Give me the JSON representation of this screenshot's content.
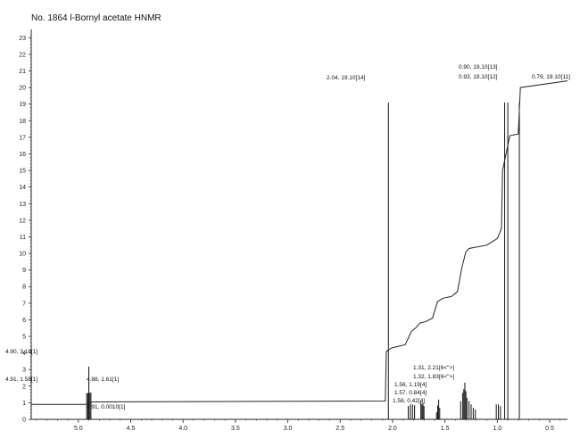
{
  "chart_data": {
    "type": "line",
    "title": "No. 1864 l-Bornyl acetate HNMR",
    "xlabel": "",
    "ylabel": "",
    "x_reversed": true,
    "xlim": [
      5.45,
      0.33
    ],
    "ylim": [
      0,
      23.5
    ],
    "x_ticks": [
      "5.0",
      "4.5",
      "4.0",
      "3.5",
      "3.0",
      "2.5",
      "2.0",
      "1.5",
      "1.0",
      "0.5"
    ],
    "y_ticks": [
      "0",
      "1",
      "2",
      "3",
      "4",
      "5",
      "6",
      "7",
      "8",
      "9",
      "10",
      "11",
      "12",
      "13",
      "14",
      "15",
      "16",
      "17",
      "18",
      "19",
      "20",
      "21",
      "22",
      "23"
    ],
    "grid": false,
    "peaks": [
      {
        "x": 4.92,
        "y": 1.58
      },
      {
        "x": 4.91,
        "y": 1.58
      },
      {
        "x": 4.9,
        "y": 3.18
      },
      {
        "x": 4.89,
        "y": 1.61
      },
      {
        "x": 4.88,
        "y": 1.61
      },
      {
        "x": 2.04,
        "y": 19.1
      },
      {
        "x": 1.85,
        "y": 0.8
      },
      {
        "x": 1.83,
        "y": 0.9
      },
      {
        "x": 1.81,
        "y": 0.9
      },
      {
        "x": 1.79,
        "y": 0.85
      },
      {
        "x": 1.73,
        "y": 1.1
      },
      {
        "x": 1.72,
        "y": 0.9
      },
      {
        "x": 1.71,
        "y": 1.0
      },
      {
        "x": 1.7,
        "y": 0.8
      },
      {
        "x": 1.58,
        "y": 0.42
      },
      {
        "x": 1.57,
        "y": 0.84
      },
      {
        "x": 1.56,
        "y": 1.19
      },
      {
        "x": 1.55,
        "y": 0.7
      },
      {
        "x": 1.35,
        "y": 1.1
      },
      {
        "x": 1.33,
        "y": 1.6
      },
      {
        "x": 1.32,
        "y": 1.83
      },
      {
        "x": 1.31,
        "y": 2.21
      },
      {
        "x": 1.3,
        "y": 1.7
      },
      {
        "x": 1.29,
        "y": 1.3
      },
      {
        "x": 1.27,
        "y": 1.1
      },
      {
        "x": 1.25,
        "y": 0.9
      },
      {
        "x": 1.23,
        "y": 0.7
      },
      {
        "x": 1.21,
        "y": 0.6
      },
      {
        "x": 1.01,
        "y": 0.9
      },
      {
        "x": 0.99,
        "y": 0.9
      },
      {
        "x": 0.97,
        "y": 0.8
      },
      {
        "x": 0.93,
        "y": 19.1
      },
      {
        "x": 0.9,
        "y": 19.1
      },
      {
        "x": 0.79,
        "y": 19.1
      }
    ],
    "integral": {
      "x": [
        5.45,
        4.93,
        4.87,
        2.07,
        2.06,
        2.01,
        1.88,
        1.82,
        1.78,
        1.74,
        1.68,
        1.62,
        1.57,
        1.52,
        1.44,
        1.38,
        1.34,
        1.3,
        1.27,
        1.1,
        1.0,
        0.96,
        0.95,
        0.88,
        0.8,
        0.78,
        0.33
      ],
      "y": [
        0.9,
        0.9,
        1.05,
        1.1,
        4.1,
        4.3,
        4.5,
        5.3,
        5.5,
        5.8,
        5.9,
        6.1,
        7.1,
        7.3,
        7.4,
        7.7,
        9.1,
        10.1,
        10.3,
        10.5,
        10.9,
        11.5,
        15.0,
        17.1,
        17.2,
        20.0,
        20.4
      ]
    },
    "annotations": [
      {
        "text": "4.90, 3.18[1]",
        "x": 4.9,
        "y": 3.18
      },
      {
        "text": "4.91, 1.58[1]",
        "x": 4.91,
        "y": 1.58
      },
      {
        "text": "4.88, 1.61[1]",
        "x": 4.88,
        "y": 1.61
      },
      {
        "text": "4.91, 0.0010[1]",
        "x": 4.91,
        "y": 0.0
      },
      {
        "text": "2.04, 19.10[14]",
        "x": 2.04,
        "y": 19.1
      },
      {
        "text": "1.31, 2.21[6<\">]",
        "x": 1.31,
        "y": 2.21
      },
      {
        "text": "1.32, 1.83[6<\">]",
        "x": 1.32,
        "y": 1.83
      },
      {
        "text": "1.56, 1.19[4]",
        "x": 1.56,
        "y": 1.19
      },
      {
        "text": "1.57, 0.84[4]",
        "x": 1.57,
        "y": 0.84
      },
      {
        "text": "1.58, 0.42[4]",
        "x": 1.58,
        "y": 0.42
      },
      {
        "text": "0.90, 19.10[13]",
        "x": 0.9,
        "y": 19.1
      },
      {
        "text": "0.93, 19.10[12]",
        "x": 0.93,
        "y": 19.1
      },
      {
        "text": "0.79, 19.10[11]",
        "x": 0.79,
        "y": 19.1
      }
    ]
  }
}
